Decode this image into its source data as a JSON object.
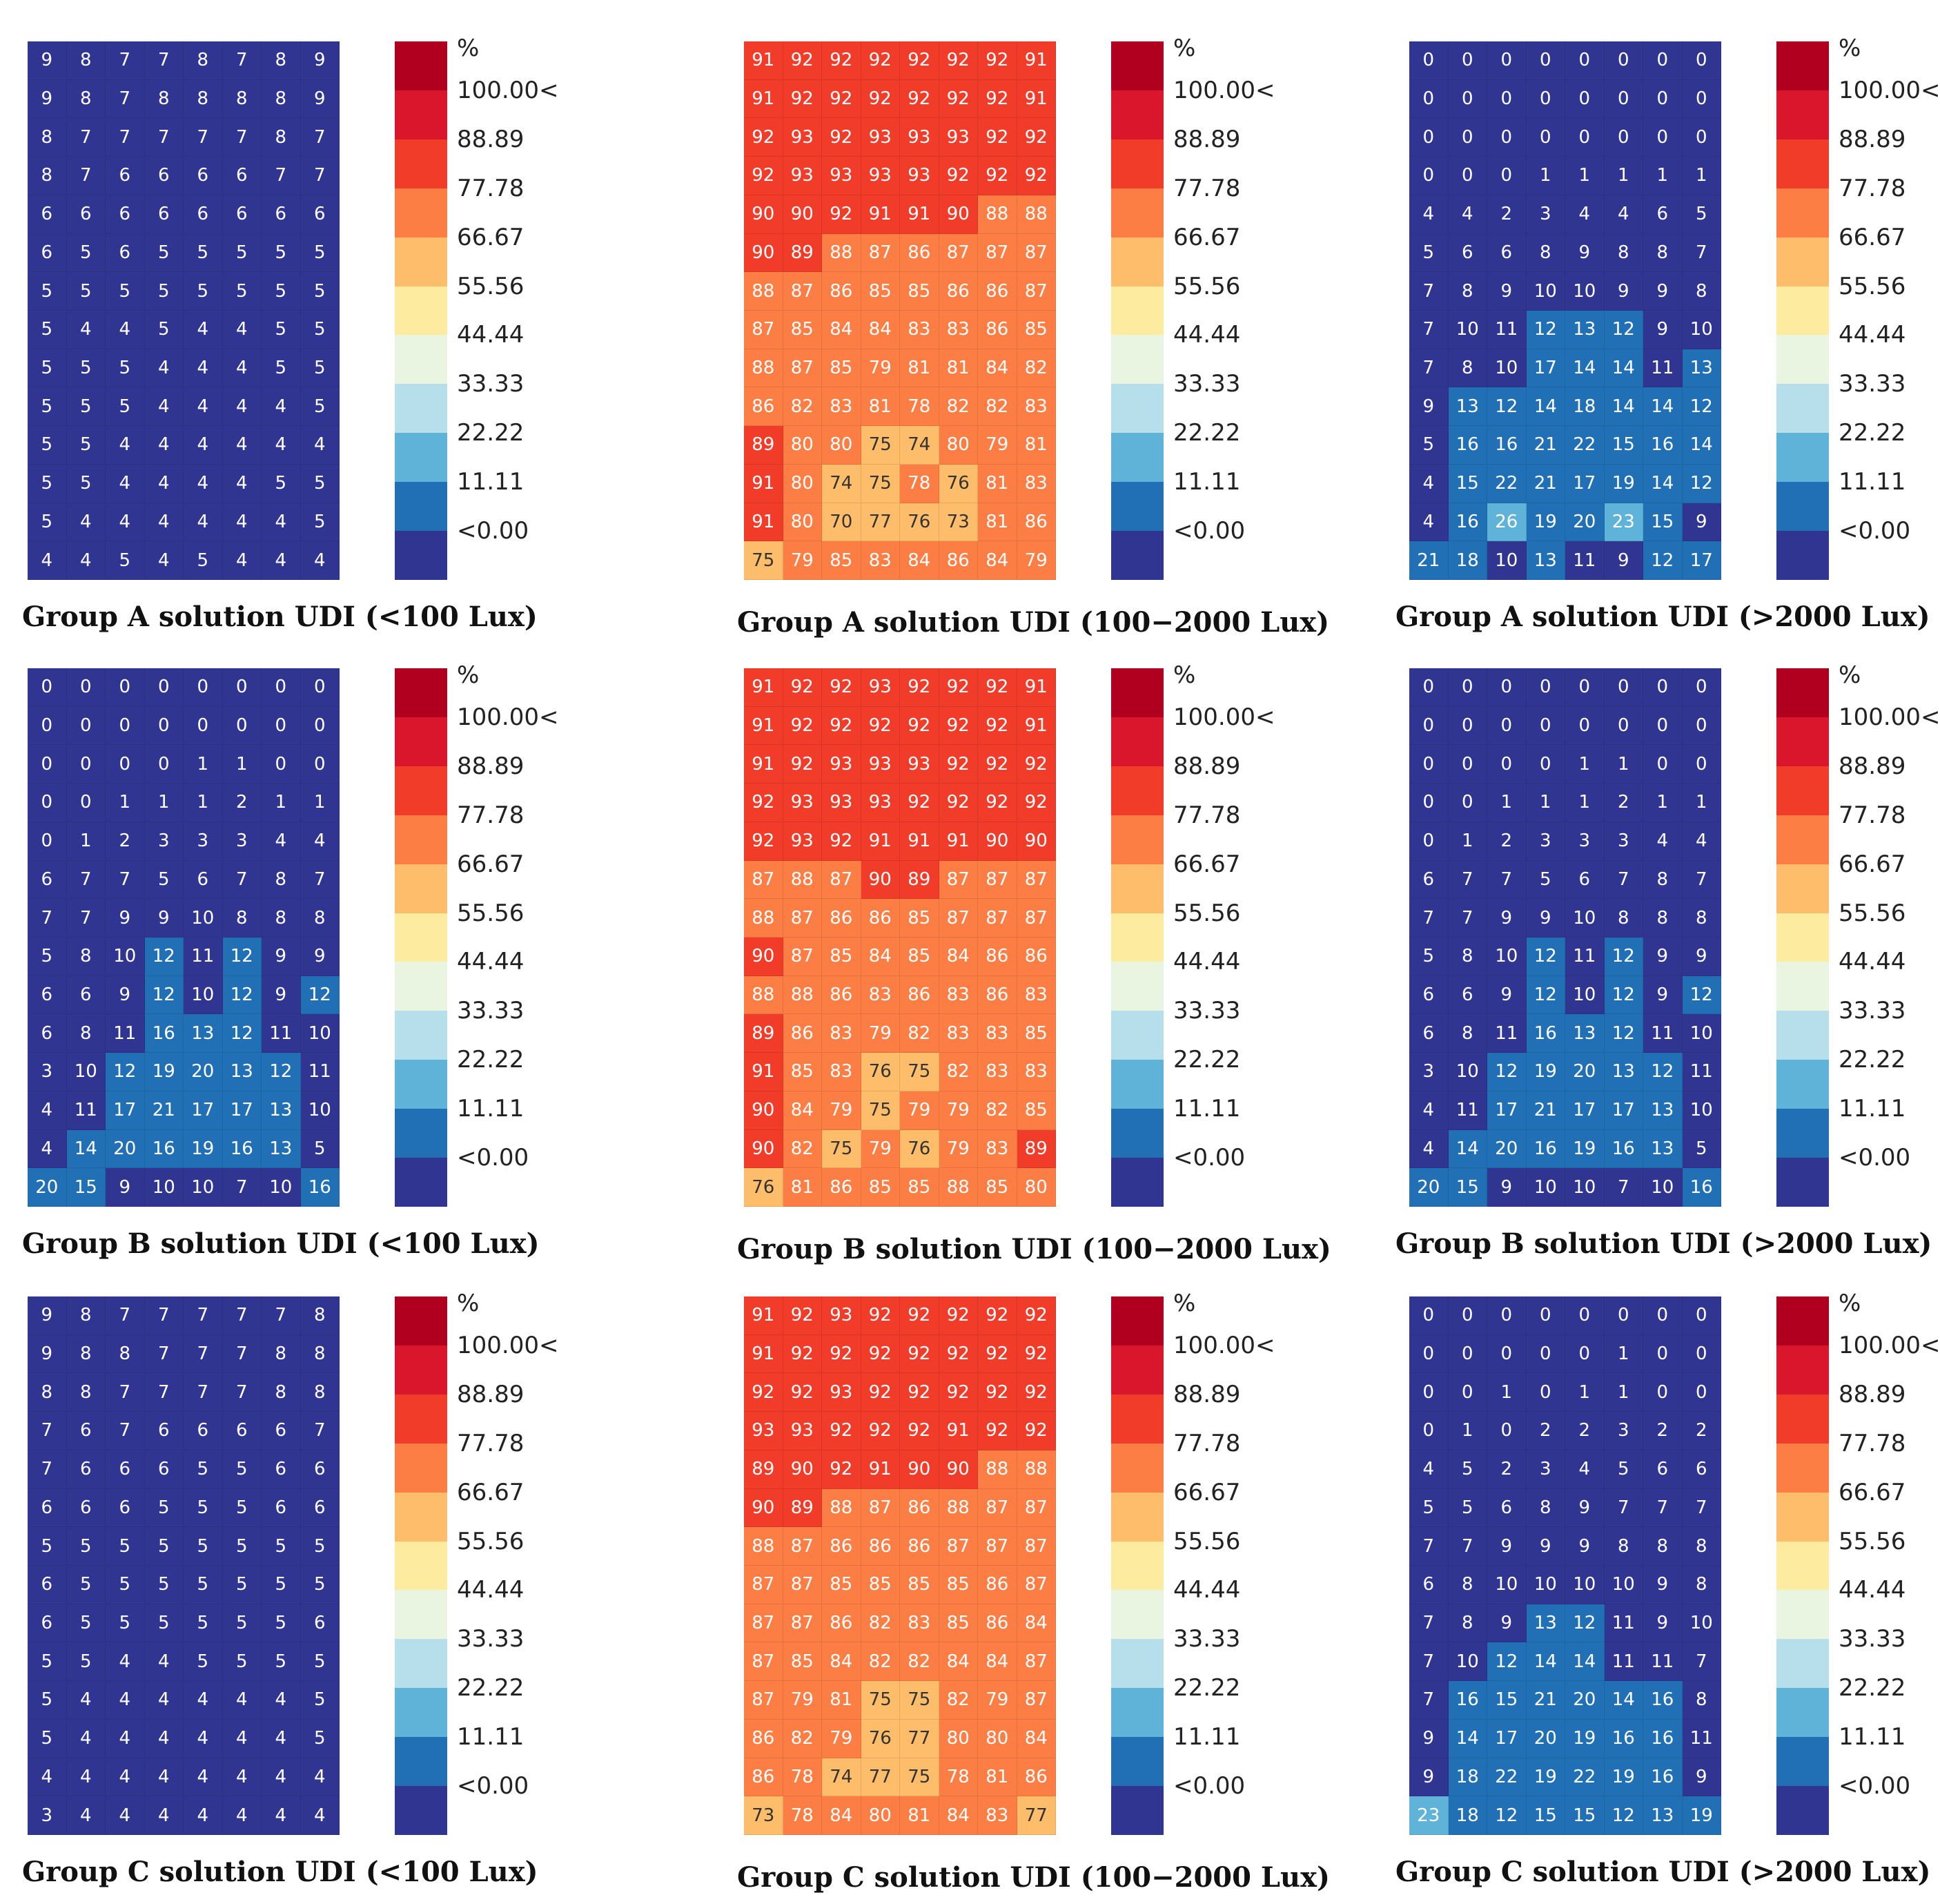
{
  "legend": {
    "unit": "%",
    "ticks": [
      "100.00<",
      "88.89",
      "77.78",
      "66.67",
      "55.56",
      "44.44",
      "33.33",
      "22.22",
      "11.11",
      "<0.00"
    ],
    "colors": [
      "#b1001f",
      "#d9162b",
      "#f23c2a",
      "#fd7e44",
      "#fdbd6b",
      "#fdeca0",
      "#e9f5e0",
      "#b6dfeb",
      "#5fb2d8",
      "#2170b6",
      "#313592"
    ]
  },
  "chart_data": [
    {
      "type": "heatmap",
      "title": "Group A solution UDI (<100 Lux)",
      "rows": 14,
      "cols": 8,
      "values": [
        [
          9,
          8,
          7,
          7,
          8,
          7,
          8,
          9
        ],
        [
          9,
          8,
          7,
          8,
          8,
          8,
          8,
          9
        ],
        [
          8,
          7,
          7,
          7,
          7,
          7,
          8,
          7
        ],
        [
          8,
          7,
          6,
          6,
          6,
          6,
          7,
          7
        ],
        [
          6,
          6,
          6,
          6,
          6,
          6,
          6,
          6
        ],
        [
          6,
          5,
          6,
          5,
          5,
          5,
          5,
          5
        ],
        [
          5,
          5,
          5,
          5,
          5,
          5,
          5,
          5
        ],
        [
          5,
          4,
          4,
          5,
          4,
          4,
          5,
          5
        ],
        [
          5,
          5,
          5,
          4,
          4,
          4,
          5,
          5
        ],
        [
          5,
          5,
          5,
          4,
          4,
          4,
          4,
          5
        ],
        [
          5,
          5,
          4,
          4,
          4,
          4,
          4,
          4
        ],
        [
          5,
          5,
          4,
          4,
          4,
          4,
          5,
          5
        ],
        [
          5,
          4,
          4,
          4,
          4,
          4,
          4,
          5
        ],
        [
          4,
          4,
          5,
          4,
          5,
          4,
          4,
          4
        ]
      ]
    },
    {
      "type": "heatmap",
      "title": "Group A solution UDI (100−2000 Lux)",
      "rows": 14,
      "cols": 8,
      "values": [
        [
          91,
          92,
          92,
          92,
          92,
          92,
          92,
          91
        ],
        [
          91,
          92,
          92,
          92,
          92,
          92,
          92,
          91
        ],
        [
          92,
          93,
          92,
          93,
          93,
          93,
          92,
          92
        ],
        [
          92,
          93,
          93,
          93,
          93,
          92,
          92,
          92
        ],
        [
          90,
          90,
          92,
          91,
          91,
          90,
          88,
          88
        ],
        [
          90,
          89,
          88,
          87,
          86,
          87,
          87,
          87
        ],
        [
          88,
          87,
          86,
          85,
          85,
          86,
          86,
          87
        ],
        [
          87,
          85,
          84,
          84,
          83,
          83,
          86,
          85
        ],
        [
          88,
          87,
          85,
          79,
          81,
          81,
          84,
          82
        ],
        [
          86,
          82,
          83,
          81,
          78,
          82,
          82,
          83
        ],
        [
          89,
          80,
          80,
          75,
          74,
          80,
          79,
          81
        ],
        [
          91,
          80,
          74,
          75,
          78,
          76,
          81,
          83
        ],
        [
          91,
          80,
          70,
          77,
          76,
          73,
          81,
          86
        ],
        [
          75,
          79,
          85,
          83,
          84,
          86,
          84,
          79
        ]
      ]
    },
    {
      "type": "heatmap",
      "title": "Group A solution UDI (>2000 Lux)",
      "rows": 14,
      "cols": 8,
      "values": [
        [
          0,
          0,
          0,
          0,
          0,
          0,
          0,
          0
        ],
        [
          0,
          0,
          0,
          0,
          0,
          0,
          0,
          0
        ],
        [
          0,
          0,
          0,
          0,
          0,
          0,
          0,
          0
        ],
        [
          0,
          0,
          0,
          1,
          1,
          1,
          1,
          1
        ],
        [
          4,
          4,
          2,
          3,
          4,
          4,
          6,
          5
        ],
        [
          5,
          6,
          6,
          8,
          9,
          8,
          8,
          7
        ],
        [
          7,
          8,
          9,
          10,
          10,
          9,
          9,
          8
        ],
        [
          7,
          10,
          11,
          12,
          13,
          12,
          9,
          10
        ],
        [
          7,
          8,
          10,
          17,
          14,
          14,
          11,
          13
        ],
        [
          9,
          13,
          12,
          14,
          18,
          14,
          14,
          12
        ],
        [
          5,
          16,
          16,
          21,
          22,
          15,
          16,
          14
        ],
        [
          4,
          15,
          22,
          21,
          17,
          19,
          14,
          12
        ],
        [
          4,
          16,
          26,
          19,
          20,
          23,
          15,
          9
        ],
        [
          21,
          18,
          10,
          13,
          11,
          9,
          12,
          17
        ]
      ]
    },
    {
      "type": "heatmap",
      "title": "Group B solution UDI (<100 Lux)",
      "rows": 14,
      "cols": 8,
      "values": [
        [
          0,
          0,
          0,
          0,
          0,
          0,
          0,
          0
        ],
        [
          0,
          0,
          0,
          0,
          0,
          0,
          0,
          0
        ],
        [
          0,
          0,
          0,
          0,
          1,
          1,
          0,
          0
        ],
        [
          0,
          0,
          1,
          1,
          1,
          2,
          1,
          1
        ],
        [
          0,
          1,
          2,
          3,
          3,
          3,
          4,
          4
        ],
        [
          6,
          7,
          7,
          5,
          6,
          7,
          8,
          7
        ],
        [
          7,
          7,
          9,
          9,
          10,
          8,
          8,
          8
        ],
        [
          5,
          8,
          10,
          12,
          11,
          12,
          9,
          9
        ],
        [
          6,
          6,
          9,
          12,
          10,
          12,
          9,
          12
        ],
        [
          6,
          8,
          11,
          16,
          13,
          12,
          11,
          10
        ],
        [
          3,
          10,
          12,
          19,
          20,
          13,
          12,
          11
        ],
        [
          4,
          11,
          17,
          21,
          17,
          17,
          13,
          10
        ],
        [
          4,
          14,
          20,
          16,
          19,
          16,
          13,
          5
        ],
        [
          20,
          15,
          9,
          10,
          10,
          7,
          10,
          16
        ]
      ]
    },
    {
      "type": "heatmap",
      "title": "Group B solution UDI (100−2000 Lux)",
      "rows": 14,
      "cols": 8,
      "values": [
        [
          91,
          92,
          92,
          93,
          92,
          92,
          92,
          91
        ],
        [
          91,
          92,
          92,
          92,
          92,
          92,
          92,
          91
        ],
        [
          91,
          92,
          93,
          93,
          93,
          92,
          92,
          92
        ],
        [
          92,
          93,
          93,
          93,
          92,
          92,
          92,
          92
        ],
        [
          92,
          93,
          92,
          91,
          91,
          91,
          90,
          90
        ],
        [
          87,
          88,
          87,
          90,
          89,
          87,
          87,
          87
        ],
        [
          88,
          87,
          86,
          86,
          85,
          87,
          87,
          87
        ],
        [
          90,
          87,
          85,
          84,
          85,
          84,
          86,
          86
        ],
        [
          88,
          88,
          86,
          83,
          86,
          83,
          86,
          83
        ],
        [
          89,
          86,
          83,
          79,
          82,
          83,
          83,
          85
        ],
        [
          91,
          85,
          83,
          76,
          75,
          82,
          83,
          83
        ],
        [
          90,
          84,
          79,
          75,
          79,
          79,
          82,
          85
        ],
        [
          90,
          82,
          75,
          79,
          76,
          79,
          83,
          89
        ],
        [
          76,
          81,
          86,
          85,
          85,
          88,
          85,
          80
        ]
      ]
    },
    {
      "type": "heatmap",
      "title": "Group B solution UDI (>2000 Lux)",
      "rows": 14,
      "cols": 8,
      "values": [
        [
          0,
          0,
          0,
          0,
          0,
          0,
          0,
          0
        ],
        [
          0,
          0,
          0,
          0,
          0,
          0,
          0,
          0
        ],
        [
          0,
          0,
          0,
          0,
          1,
          1,
          0,
          0
        ],
        [
          0,
          0,
          1,
          1,
          1,
          2,
          1,
          1
        ],
        [
          0,
          1,
          2,
          3,
          3,
          3,
          4,
          4
        ],
        [
          6,
          7,
          7,
          5,
          6,
          7,
          8,
          7
        ],
        [
          7,
          7,
          9,
          9,
          10,
          8,
          8,
          8
        ],
        [
          5,
          8,
          10,
          12,
          11,
          12,
          9,
          9
        ],
        [
          6,
          6,
          9,
          12,
          10,
          12,
          9,
          12
        ],
        [
          6,
          8,
          11,
          16,
          13,
          12,
          11,
          10
        ],
        [
          3,
          10,
          12,
          19,
          20,
          13,
          12,
          11
        ],
        [
          4,
          11,
          17,
          21,
          17,
          17,
          13,
          10
        ],
        [
          4,
          14,
          20,
          16,
          19,
          16,
          13,
          5
        ],
        [
          20,
          15,
          9,
          10,
          10,
          7,
          10,
          16
        ]
      ]
    },
    {
      "type": "heatmap",
      "title": "Group C solution UDI (<100 Lux)",
      "rows": 14,
      "cols": 8,
      "values": [
        [
          9,
          8,
          7,
          7,
          7,
          7,
          7,
          8
        ],
        [
          9,
          8,
          8,
          7,
          7,
          7,
          8,
          8
        ],
        [
          8,
          8,
          7,
          7,
          7,
          7,
          8,
          8
        ],
        [
          7,
          6,
          7,
          6,
          6,
          6,
          6,
          7
        ],
        [
          7,
          6,
          6,
          6,
          5,
          5,
          6,
          6
        ],
        [
          6,
          6,
          6,
          5,
          5,
          5,
          6,
          6
        ],
        [
          5,
          5,
          5,
          5,
          5,
          5,
          5,
          5
        ],
        [
          6,
          5,
          5,
          5,
          5,
          5,
          5,
          5
        ],
        [
          6,
          5,
          5,
          5,
          5,
          5,
          5,
          6
        ],
        [
          5,
          5,
          4,
          4,
          5,
          5,
          5,
          5
        ],
        [
          5,
          4,
          4,
          4,
          4,
          4,
          4,
          5
        ],
        [
          5,
          4,
          4,
          4,
          4,
          4,
          4,
          5
        ],
        [
          4,
          4,
          4,
          4,
          4,
          4,
          4,
          4
        ],
        [
          3,
          4,
          4,
          4,
          4,
          4,
          4,
          4
        ]
      ]
    },
    {
      "type": "heatmap",
      "title": "Group C solution UDI (100−2000 Lux)",
      "rows": 14,
      "cols": 8,
      "values": [
        [
          91,
          92,
          93,
          92,
          92,
          92,
          92,
          92
        ],
        [
          91,
          92,
          92,
          92,
          92,
          92,
          92,
          92
        ],
        [
          92,
          92,
          93,
          92,
          92,
          92,
          92,
          92
        ],
        [
          93,
          93,
          92,
          92,
          92,
          91,
          92,
          92
        ],
        [
          89,
          90,
          92,
          91,
          90,
          90,
          88,
          88
        ],
        [
          90,
          89,
          88,
          87,
          86,
          88,
          87,
          87
        ],
        [
          88,
          87,
          86,
          86,
          86,
          87,
          87,
          87
        ],
        [
          87,
          87,
          85,
          85,
          85,
          85,
          86,
          87
        ],
        [
          87,
          87,
          86,
          82,
          83,
          85,
          86,
          84
        ],
        [
          87,
          85,
          84,
          82,
          82,
          84,
          84,
          87
        ],
        [
          87,
          79,
          81,
          75,
          75,
          82,
          79,
          87
        ],
        [
          86,
          82,
          79,
          76,
          77,
          80,
          80,
          84
        ],
        [
          86,
          78,
          74,
          77,
          75,
          78,
          81,
          86
        ],
        [
          73,
          78,
          84,
          80,
          81,
          84,
          83,
          77
        ]
      ]
    },
    {
      "type": "heatmap",
      "title": "Group C solution UDI (>2000 Lux)",
      "rows": 14,
      "cols": 8,
      "values": [
        [
          0,
          0,
          0,
          0,
          0,
          0,
          0,
          0
        ],
        [
          0,
          0,
          0,
          0,
          0,
          1,
          0,
          0
        ],
        [
          0,
          0,
          1,
          0,
          1,
          1,
          0,
          0
        ],
        [
          0,
          1,
          0,
          2,
          2,
          3,
          2,
          2
        ],
        [
          4,
          5,
          2,
          3,
          4,
          5,
          6,
          6
        ],
        [
          5,
          5,
          6,
          8,
          9,
          7,
          7,
          7
        ],
        [
          7,
          7,
          9,
          9,
          9,
          8,
          8,
          8
        ],
        [
          6,
          8,
          10,
          10,
          10,
          10,
          9,
          8
        ],
        [
          7,
          8,
          9,
          13,
          12,
          11,
          9,
          10
        ],
        [
          7,
          10,
          12,
          14,
          14,
          11,
          11,
          7
        ],
        [
          7,
          16,
          15,
          21,
          20,
          14,
          16,
          8
        ],
        [
          9,
          14,
          17,
          20,
          19,
          16,
          16,
          11
        ],
        [
          9,
          18,
          22,
          19,
          22,
          19,
          16,
          9
        ],
        [
          23,
          18,
          12,
          15,
          15,
          12,
          13,
          19
        ]
      ]
    }
  ]
}
